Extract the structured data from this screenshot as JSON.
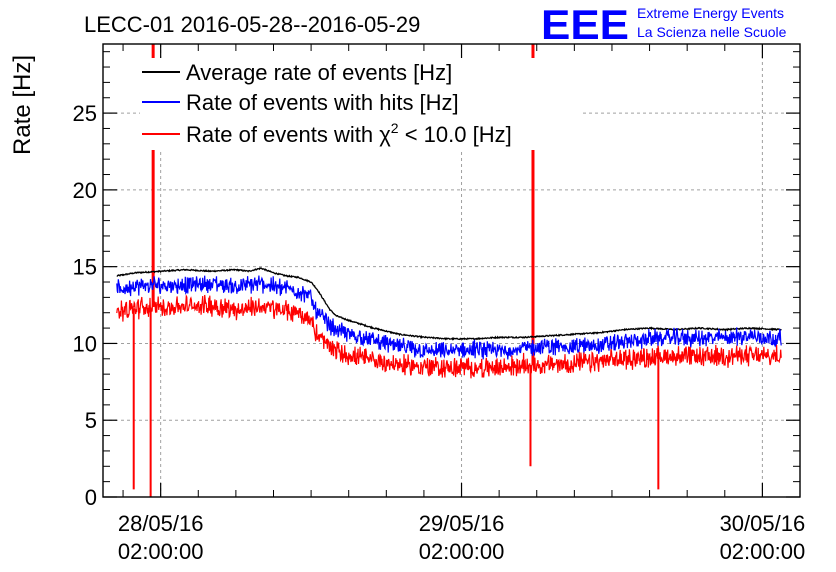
{
  "chart_data": {
    "type": "line",
    "title": "LECC-01 2016-05-28--2016-05-29",
    "xlabel": "",
    "ylabel": "Rate [Hz]",
    "ylim": [
      0,
      29.5
    ],
    "yticks": [
      0,
      5,
      10,
      15,
      20,
      25
    ],
    "xlim_hours": [
      -4.6,
      51.0
    ],
    "xticks": [
      {
        "hour": 0,
        "date": "28/05/16",
        "time": "02:00:00"
      },
      {
        "hour": 24,
        "date": "29/05/16",
        "time": "02:00:00"
      },
      {
        "hour": 48,
        "date": "30/05/16",
        "time": "02:00:00"
      }
    ],
    "x_unit_note": "hours after 28/05/16 02:00:00",
    "grid": true,
    "legend": {
      "position": "top-left",
      "entries": [
        {
          "label": "Average rate of events [Hz]",
          "color": "#000000"
        },
        {
          "label": "Rate of events with hits [Hz]",
          "color": "#0000ff"
        },
        {
          "label_prefix": "Rate of events with ",
          "label_symbol": "χ",
          "label_exp": "2",
          "label_suffix": " < 10.0 [Hz]",
          "color": "#ff0000"
        }
      ]
    },
    "series": [
      {
        "name": "Average rate of events [Hz]",
        "color": "#000000",
        "x": [
          -3.5,
          -2,
          0,
          2,
          4,
          6,
          7,
          8,
          9,
          10,
          11,
          12,
          12.5,
          13.5,
          14,
          15,
          17,
          19,
          21,
          23,
          25,
          27,
          29,
          31,
          33,
          35,
          37,
          39,
          41,
          43,
          45,
          47,
          49.5
        ],
        "values": [
          14.4,
          14.6,
          14.7,
          14.8,
          14.7,
          14.8,
          14.7,
          14.9,
          14.6,
          14.4,
          14.3,
          14.0,
          13.5,
          12.2,
          11.8,
          11.5,
          11.0,
          10.6,
          10.4,
          10.3,
          10.3,
          10.4,
          10.4,
          10.5,
          10.6,
          10.7,
          10.9,
          11.0,
          10.9,
          11.0,
          10.9,
          11.0,
          10.9
        ]
      },
      {
        "name": "Rate of events with hits [Hz]",
        "color": "#0000ff",
        "x": [
          -3.5,
          -2,
          0,
          2,
          4,
          6,
          8,
          10,
          11,
          12,
          12.5,
          13.5,
          14,
          15,
          17,
          19,
          21,
          23,
          25,
          27,
          29,
          31,
          33,
          35,
          37,
          39,
          41,
          43,
          45,
          47,
          49.5
        ],
        "values": [
          13.5,
          13.7,
          13.8,
          13.8,
          13.9,
          13.7,
          13.9,
          13.6,
          13.4,
          13.0,
          12.0,
          11.2,
          10.9,
          10.6,
          10.2,
          9.8,
          9.5,
          9.5,
          9.6,
          9.5,
          9.7,
          9.8,
          9.8,
          9.9,
          10.1,
          10.3,
          10.4,
          10.3,
          10.4,
          10.5,
          10.3
        ]
      },
      {
        "name": "Rate of events with χ2 < 10.0 [Hz]",
        "color": "#ff0000",
        "x": [
          -3.5,
          -2,
          0,
          2,
          4,
          6,
          8,
          10,
          11,
          12,
          12.5,
          13.5,
          14,
          15,
          17,
          19,
          21,
          23,
          25,
          27,
          29,
          31,
          33,
          35,
          37,
          39,
          41,
          43,
          45,
          47,
          49.5
        ],
        "values": [
          12.1,
          12.3,
          12.4,
          12.4,
          12.5,
          12.2,
          12.4,
          12.1,
          12.0,
          11.5,
          10.5,
          9.8,
          9.5,
          9.2,
          8.9,
          8.6,
          8.5,
          8.4,
          8.4,
          8.4,
          8.6,
          8.6,
          8.7,
          8.8,
          9.0,
          9.1,
          9.2,
          9.1,
          9.2,
          9.2,
          9.1
        ]
      }
    ],
    "spikes": [
      {
        "series": "Rate of events with χ2 < 10.0 [Hz]",
        "hour": -2.15,
        "value": 0.5
      },
      {
        "series": "Rate of events with χ2 < 10.0 [Hz]",
        "hour": -0.8,
        "value": 0
      },
      {
        "series": "Rate of events with χ2 < 10.0 [Hz]",
        "hour": -0.6,
        "value": 29.5
      },
      {
        "series": "Rate of events with χ2 < 10.0 [Hz]",
        "hour": 29.5,
        "value": 2.0
      },
      {
        "series": "Rate of events with χ2 < 10.0 [Hz]",
        "hour": 29.7,
        "value": 29.5
      },
      {
        "series": "Rate of events with χ2 < 10.0 [Hz]",
        "hour": 39.7,
        "value": 0.5
      }
    ]
  },
  "logo": {
    "mark": "EEE",
    "line1": "Extreme Energy Events",
    "line2": "La Scienza nelle Scuole",
    "color": "#0000ff"
  }
}
